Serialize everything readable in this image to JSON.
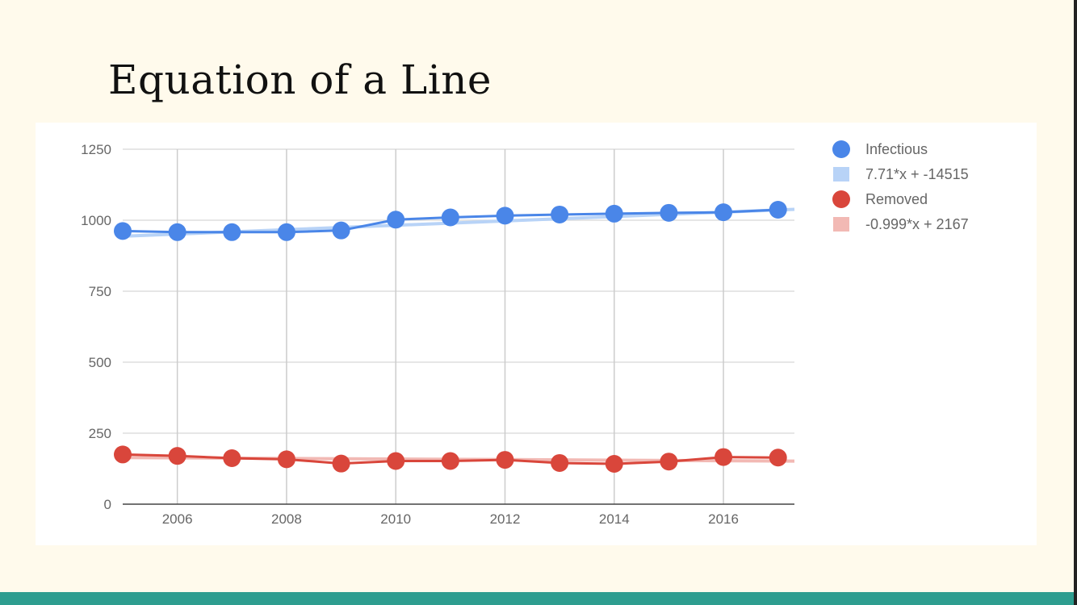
{
  "slide": {
    "title": "Equation of a Line"
  },
  "chart_data": {
    "type": "scatter",
    "x_ticks": [
      2006,
      2008,
      2010,
      2012,
      2014,
      2016
    ],
    "y_ticks": [
      0,
      250,
      500,
      750,
      1000,
      1250
    ],
    "xlim": [
      2005,
      2017.3
    ],
    "ylim": [
      0,
      1250
    ],
    "grid": true,
    "legend_position": "right",
    "series": [
      {
        "name": "Infectious",
        "color": "#4a86e8",
        "x": [
          2005,
          2006,
          2007,
          2008,
          2009,
          2010,
          2011,
          2012,
          2013,
          2014,
          2015,
          2016,
          2017
        ],
        "y": [
          962,
          958,
          958,
          958,
          964,
          1002,
          1010,
          1016,
          1020,
          1023,
          1026,
          1028,
          1037
        ]
      },
      {
        "name": "Removed",
        "color": "#d9463b",
        "x": [
          2005,
          2006,
          2007,
          2008,
          2009,
          2010,
          2011,
          2012,
          2013,
          2014,
          2015,
          2016,
          2017
        ],
        "y": [
          175,
          170,
          162,
          158,
          143,
          152,
          152,
          156,
          145,
          142,
          150,
          166,
          164
        ]
      }
    ],
    "trendlines": [
      {
        "name": "7.71*x + -14515",
        "color": "#b8d3f7",
        "slope": 7.71,
        "intercept": -14515,
        "for_series": "Infectious"
      },
      {
        "name": "-0.999*x + 2167",
        "color": "#f2b9b4",
        "slope": -0.999,
        "intercept": 2167,
        "for_series": "Removed"
      }
    ]
  }
}
